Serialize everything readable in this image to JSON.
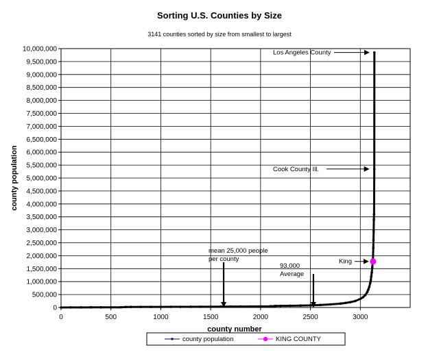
{
  "chart_data": {
    "type": "line",
    "title": "Sorting U.S. Counties by Size",
    "subtitle": "3141 counties sorted by size from smallest to largest",
    "xlabel": "county number",
    "ylabel": "county population",
    "xlim": [
      0,
      3500
    ],
    "ylim": [
      0,
      10000000
    ],
    "x_ticks": [
      0,
      500,
      1000,
      1500,
      2000,
      2500,
      3000
    ],
    "x_tick_labels": [
      "0",
      "500",
      "1000",
      "1500",
      "2000",
      "2500",
      "3000"
    ],
    "y_ticks": [
      0,
      500000,
      1000000,
      1500000,
      2000000,
      2500000,
      3000000,
      3500000,
      4000000,
      4500000,
      5000000,
      5500000,
      6000000,
      6500000,
      7000000,
      7500000,
      8000000,
      8500000,
      9000000,
      9500000,
      10000000
    ],
    "y_tick_labels": [
      "0",
      "500,000",
      "1,000,000",
      "1,500,000",
      "2,000,000",
      "2,500,000",
      "3,000,000",
      "3,500,000",
      "4,000,000",
      "4,500,000",
      "5,000,000",
      "5,500,000",
      "6,000,000",
      "6,500,000",
      "7,000,000",
      "7,500,000",
      "8,000,000",
      "8,500,000",
      "9,000,000",
      "9,500,000",
      "10,000,000"
    ],
    "grid": true,
    "legend_position": "bottom",
    "series": [
      {
        "name": "county population",
        "color": "#000080",
        "marker_color": "#000000",
        "x": [
          1,
          100,
          200,
          300,
          400,
          500,
          600,
          650,
          700,
          800,
          900,
          1000,
          1100,
          1200,
          1300,
          1400,
          1500,
          1600,
          1700,
          1800,
          1900,
          2000,
          2100,
          2150,
          2200,
          2300,
          2400,
          2500,
          2600,
          2700,
          2800,
          2850,
          2900,
          2950,
          3000,
          3025,
          3050,
          3070,
          3080,
          3090,
          3100,
          3105,
          3110,
          3115,
          3120,
          3125,
          3128,
          3130,
          3132,
          3134,
          3136,
          3138,
          3140,
          3141
        ],
        "y": [
          100,
          2000,
          3500,
          5000,
          6000,
          7000,
          8000,
          20000,
          21000,
          22000,
          23000,
          24000,
          25000,
          26000,
          27000,
          29000,
          31000,
          33000,
          35000,
          37000,
          40000,
          43000,
          47000,
          60000,
          62000,
          67000,
          74000,
          83000,
          97000,
          118000,
          150000,
          175000,
          205000,
          250000,
          330000,
          390000,
          480000,
          600000,
          690000,
          800000,
          950000,
          1050000,
          1200000,
          1350000,
          1550000,
          1800000,
          2000000,
          2300000,
          2600000,
          2950000,
          3400000,
          3600000,
          5350000,
          9850000
        ]
      },
      {
        "name": "KING COUNTY",
        "color": "#ff00ff",
        "x": [
          3127
        ],
        "y": [
          1780000
        ]
      }
    ],
    "annotations": [
      {
        "id": "los-angeles",
        "text": "Los Angeles County",
        "x": 3141,
        "y": 9850000
      },
      {
        "id": "cook",
        "text": "Cook County Ill.",
        "x": 3140,
        "y": 5350000
      },
      {
        "id": "king",
        "text": "King",
        "x": 3127,
        "y": 1780000
      },
      {
        "id": "mean",
        "text_lines": [
          "mean 25,000 people",
          "per county"
        ],
        "x": 1630,
        "y": 0
      },
      {
        "id": "average",
        "text_lines": [
          "93,000",
          "Average"
        ],
        "x": 2530,
        "y": 0
      }
    ]
  }
}
